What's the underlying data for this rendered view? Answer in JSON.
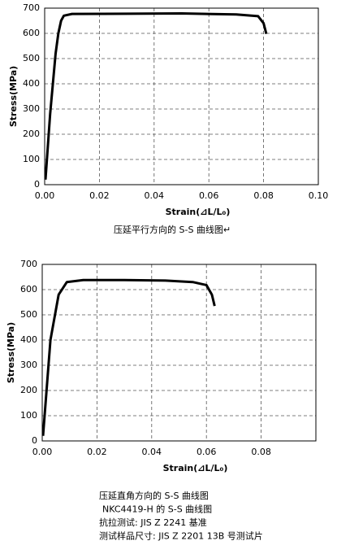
{
  "chart_data": [
    {
      "type": "line",
      "ylabel": "Stress(MPa)",
      "xlabel": "Strain(⊿L/L₀)",
      "x": [
        0.0003,
        0.002,
        0.004,
        0.005,
        0.006,
        0.007,
        0.01,
        0.03,
        0.05,
        0.07,
        0.078,
        0.08,
        0.081
      ],
      "values": [
        20,
        280,
        520,
        600,
        650,
        670,
        677,
        678,
        679,
        675,
        668,
        640,
        598
      ],
      "color": "#000000",
      "xlim": [
        0,
        0.1
      ],
      "ylim": [
        0,
        700
      ],
      "xticks": [
        {
          "value": 0,
          "label": "0.00"
        },
        0.02,
        0.04,
        0.06,
        0.08,
        {
          "value": 0.1,
          "label": "0.10"
        }
      ],
      "yticks": [
        0,
        100,
        200,
        300,
        400,
        500,
        600,
        700
      ],
      "grid": true,
      "captions": [
        "压延平行方向的 S-S 曲线图↵"
      ]
    },
    {
      "type": "line",
      "ylabel": "Stress(MPa)",
      "xlabel": "Strain(⊿L/L₀)",
      "x": [
        0.0003,
        0.003,
        0.006,
        0.009,
        0.015,
        0.03,
        0.045,
        0.055,
        0.06,
        0.062,
        0.063
      ],
      "values": [
        20,
        400,
        580,
        630,
        638,
        638,
        636,
        630,
        618,
        580,
        535
      ],
      "color": "#000000",
      "xlim": [
        0,
        0.1
      ],
      "ylim": [
        0,
        700
      ],
      "xticks": [
        {
          "value": 0,
          "label": "0.00"
        },
        0.02,
        0.04,
        0.06,
        0.08
      ],
      "yticks": [
        0,
        100,
        200,
        300,
        400,
        500,
        600,
        700
      ],
      "grid": true,
      "captions": [
        "压延直角方向的 S-S 曲线图",
        "NKC4419-H 的 S-S 曲线图",
        "抗拉测试: JIS Z 2241 基准",
        "测试样品尺寸: JIS Z 2201 13B 号测试片"
      ]
    }
  ]
}
